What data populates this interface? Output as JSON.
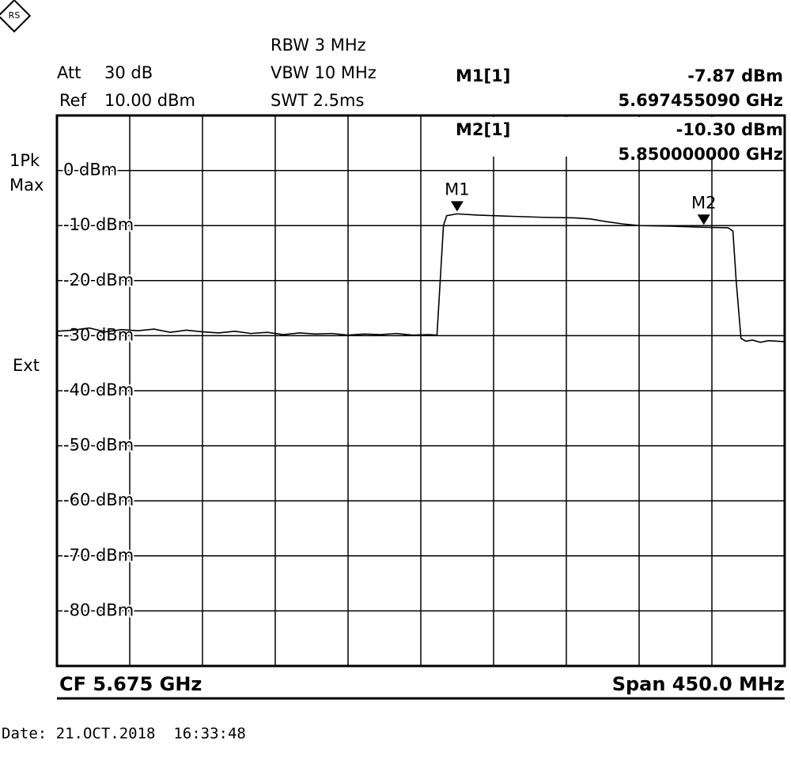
{
  "chart_data": {
    "type": "line",
    "settings": {
      "att_label": "Att",
      "att": "30 dB",
      "ref_label": "Ref",
      "ref": "10.00 dBm",
      "rbw": "RBW 3 MHz",
      "vbw": "VBW 10 MHz",
      "swt": "SWT 2.5ms",
      "detector": "1Pk",
      "mode": "Max",
      "trigger": "Ext",
      "cf": "CF 5.675 GHz",
      "span": "Span 450.0 MHz",
      "date": "Date: 21.OCT.2018  16:33:48"
    },
    "xlim": [
      5.45,
      5.9
    ],
    "ylim": [
      -90,
      10
    ],
    "yticks": [
      {
        "value": 0,
        "label": "0 dBm"
      },
      {
        "value": -10,
        "label": "-10 dBm"
      },
      {
        "value": -20,
        "label": "-20 dBm"
      },
      {
        "value": -30,
        "label": "-30 dBm"
      },
      {
        "value": -40,
        "label": "-40 dBm"
      },
      {
        "value": -50,
        "label": "-50 dBm"
      },
      {
        "value": -60,
        "label": "-60 dBm"
      },
      {
        "value": -70,
        "label": "-70 dBm"
      },
      {
        "value": -80,
        "label": "-80 dBm"
      }
    ],
    "grid": true,
    "series": [
      {
        "color": "#000000",
        "x": [
          5.45,
          5.46,
          5.47,
          5.48,
          5.49,
          5.5,
          5.51,
          5.52,
          5.53,
          5.54,
          5.55,
          5.56,
          5.57,
          5.58,
          5.59,
          5.6,
          5.61,
          5.62,
          5.63,
          5.64,
          5.65,
          5.66,
          5.67,
          5.68,
          5.685,
          5.687,
          5.689,
          5.691,
          5.69745509,
          5.71,
          5.73,
          5.75,
          5.77,
          5.78,
          5.79,
          5.8,
          5.81,
          5.83,
          5.85,
          5.865,
          5.868,
          5.87,
          5.873,
          5.876,
          5.88,
          5.885,
          5.89,
          5.895,
          5.9
        ],
        "values": [
          -29.2,
          -29.0,
          -28.6,
          -29.3,
          -28.9,
          -29.1,
          -28.8,
          -29.4,
          -29.0,
          -29.3,
          -29.5,
          -29.2,
          -29.6,
          -29.4,
          -29.8,
          -29.5,
          -29.7,
          -29.6,
          -29.9,
          -29.7,
          -29.8,
          -29.6,
          -29.9,
          -29.8,
          -29.9,
          -20,
          -10,
          -8.2,
          -7.87,
          -8.1,
          -8.3,
          -8.5,
          -8.6,
          -8.8,
          -9.3,
          -9.7,
          -10.0,
          -10.1,
          -10.3,
          -10.4,
          -11,
          -20,
          -30.5,
          -31.0,
          -30.8,
          -31.2,
          -30.9,
          -31.0,
          -31.1
        ]
      }
    ],
    "markers": [
      {
        "name": "M1",
        "readout": "M1[1]",
        "x": 5.69745509,
        "y": -7.87,
        "y_label": "-7.87 dBm",
        "x_label": "5.697455090 GHz"
      },
      {
        "name": "M2",
        "readout": "M2[1]",
        "x": 5.85,
        "y": -10.3,
        "y_label": "-10.30 dBm",
        "x_label": "5.850000000 GHz"
      }
    ]
  }
}
